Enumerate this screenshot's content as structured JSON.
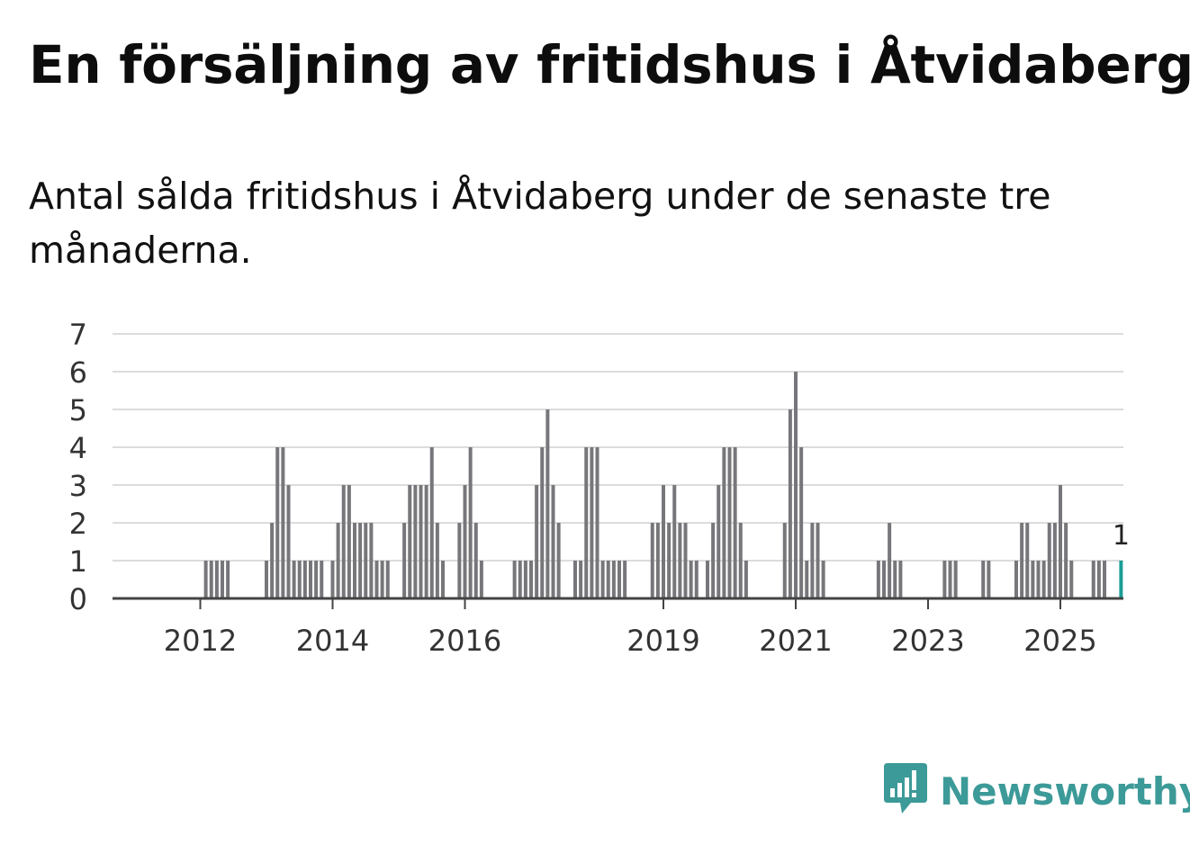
{
  "title": "En försäljning av fritidshus i Åtvidaberg",
  "subtitle": "Antal sålda fritidshus i Åtvidaberg under de senaste tre månaderna.",
  "brand": {
    "name": "Newsworthy",
    "icon": "newsworthy-logo-icon",
    "color": "#3c9a98"
  },
  "colors": {
    "bar": "#77777b",
    "highlight": "#1a9e96",
    "grid": "#dcdcdc",
    "axis": "#444444"
  },
  "chart_data": {
    "type": "bar",
    "x_unit": "month",
    "start": "2011-01",
    "ylim": [
      0,
      7
    ],
    "yticks": [
      0,
      1,
      2,
      3,
      4,
      5,
      6,
      7
    ],
    "grid": true,
    "xticks": [
      {
        "label": "2012",
        "index": 12
      },
      {
        "label": "2014",
        "index": 36
      },
      {
        "label": "2016",
        "index": 60
      },
      {
        "label": "2019",
        "index": 96
      },
      {
        "label": "2021",
        "index": 120
      },
      {
        "label": "2023",
        "index": 144
      },
      {
        "label": "2025",
        "index": 168
      }
    ],
    "values": [
      0,
      0,
      0,
      0,
      0,
      0,
      0,
      0,
      0,
      0,
      0,
      0,
      0,
      1,
      1,
      1,
      1,
      1,
      0,
      0,
      0,
      0,
      0,
      0,
      1,
      2,
      4,
      4,
      3,
      1,
      1,
      1,
      1,
      1,
      1,
      0,
      1,
      2,
      3,
      3,
      2,
      2,
      2,
      2,
      1,
      1,
      1,
      0,
      0,
      2,
      3,
      3,
      3,
      3,
      4,
      2,
      1,
      0,
      0,
      2,
      3,
      4,
      2,
      1,
      0,
      0,
      0,
      0,
      0,
      1,
      1,
      1,
      1,
      3,
      4,
      5,
      3,
      2,
      0,
      0,
      1,
      1,
      4,
      4,
      4,
      1,
      1,
      1,
      1,
      1,
      0,
      0,
      0,
      0,
      2,
      2,
      3,
      2,
      3,
      2,
      2,
      1,
      1,
      0,
      1,
      2,
      3,
      4,
      4,
      4,
      2,
      1,
      0,
      0,
      0,
      0,
      0,
      0,
      2,
      5,
      6,
      4,
      1,
      2,
      2,
      1,
      0,
      0,
      0,
      0,
      0,
      0,
      0,
      0,
      0,
      1,
      1,
      2,
      1,
      1,
      0,
      0,
      0,
      0,
      0,
      0,
      0,
      1,
      1,
      1,
      0,
      0,
      0,
      0,
      1,
      1,
      0,
      0,
      0,
      0,
      1,
      2,
      2,
      1,
      1,
      1,
      2,
      2,
      3,
      2,
      1,
      0,
      0,
      0,
      1,
      1,
      1,
      0,
      0,
      1
    ],
    "highlight": {
      "index": 179,
      "label": "1"
    }
  }
}
